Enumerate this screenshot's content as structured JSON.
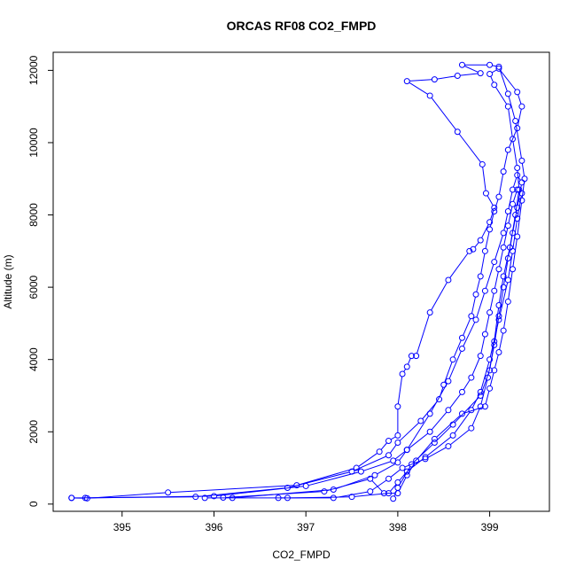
{
  "chart_data": {
    "type": "line",
    "title": "ORCAS RF08 CO2_FMPD",
    "xlabel": "CO2_FMPD",
    "ylabel": "Altitude (m)",
    "xlim": [
      394.25,
      399.65
    ],
    "ylim": [
      -200,
      12500
    ],
    "x_ticks": [
      395,
      396,
      397,
      398,
      399
    ],
    "y_ticks": [
      0,
      2000,
      4000,
      6000,
      8000,
      10000,
      12000
    ],
    "x_tick_labels": [
      "395",
      "396",
      "397",
      "398",
      "399"
    ],
    "y_tick_labels": [
      "0",
      "2000",
      "4000",
      "6000",
      "8000",
      "10000",
      "12000"
    ],
    "grid": false,
    "marker": "open-circle",
    "color": "#0000ff",
    "series": [
      {
        "points": [
          [
            394.45,
            170
          ],
          [
            394.62,
            160
          ],
          [
            395.5,
            320
          ],
          [
            396.9,
            520
          ],
          [
            397.55,
            1000
          ],
          [
            397.8,
            1450
          ],
          [
            397.9,
            1750
          ],
          [
            398.0,
            1900
          ],
          [
            398.0,
            2700
          ],
          [
            398.05,
            3600
          ],
          [
            398.1,
            3800
          ],
          [
            398.15,
            4100
          ],
          [
            398.2,
            4100
          ],
          [
            398.35,
            5300
          ],
          [
            398.55,
            6200
          ],
          [
            398.78,
            7000
          ],
          [
            398.82,
            7050
          ],
          [
            398.9,
            7300
          ],
          [
            399.0,
            7800
          ],
          [
            399.05,
            8200
          ],
          [
            398.96,
            8600
          ],
          [
            398.92,
            9400
          ],
          [
            398.65,
            10300
          ],
          [
            398.35,
            11300
          ],
          [
            398.1,
            11700
          ],
          [
            398.4,
            11750
          ],
          [
            398.65,
            11850
          ],
          [
            398.9,
            11920
          ],
          [
            398.7,
            12150
          ],
          [
            399.0,
            12150
          ],
          [
            399.1,
            12100
          ],
          [
            399.2,
            11350
          ],
          [
            399.28,
            10600
          ],
          [
            399.35,
            9500
          ],
          [
            399.38,
            9000
          ],
          [
            399.35,
            8400
          ],
          [
            399.3,
            7400
          ],
          [
            399.25,
            6500
          ],
          [
            399.2,
            5600
          ],
          [
            399.15,
            4800
          ],
          [
            399.1,
            4200
          ],
          [
            399.05,
            3700
          ],
          [
            399.0,
            3200
          ],
          [
            398.95,
            2700
          ],
          [
            398.7,
            2500
          ],
          [
            398.4,
            1800
          ],
          [
            398.2,
            1200
          ],
          [
            398.1,
            800
          ],
          [
            398.0,
            300
          ],
          [
            397.85,
            300
          ],
          [
            397.7,
            700
          ],
          [
            397.2,
            350
          ],
          [
            396.1,
            180
          ]
        ]
      },
      {
        "points": [
          [
            394.45,
            170
          ],
          [
            395.8,
            200
          ],
          [
            396.8,
            450
          ],
          [
            397.5,
            900
          ],
          [
            397.9,
            1350
          ],
          [
            398.0,
            1700
          ],
          [
            398.25,
            2300
          ],
          [
            398.45,
            2900
          ],
          [
            398.5,
            3300
          ],
          [
            398.6,
            4000
          ],
          [
            398.7,
            4600
          ],
          [
            398.8,
            5200
          ],
          [
            398.85,
            5800
          ],
          [
            398.9,
            6300
          ],
          [
            398.95,
            7000
          ],
          [
            399.0,
            7600
          ],
          [
            399.05,
            8100
          ],
          [
            399.1,
            8500
          ],
          [
            399.15,
            9200
          ],
          [
            399.2,
            9800
          ],
          [
            399.3,
            10400
          ],
          [
            399.35,
            11000
          ],
          [
            399.3,
            11400
          ],
          [
            399.1,
            12050
          ],
          [
            399.0,
            11900
          ],
          [
            399.05,
            11600
          ],
          [
            399.2,
            11000
          ],
          [
            399.25,
            10100
          ],
          [
            399.3,
            9300
          ],
          [
            399.32,
            8700
          ],
          [
            399.28,
            8000
          ],
          [
            399.22,
            7100
          ],
          [
            399.15,
            6300
          ],
          [
            399.1,
            5500
          ],
          [
            399.05,
            4500
          ],
          [
            399.0,
            3700
          ],
          [
            398.9,
            3000
          ],
          [
            398.6,
            2200
          ],
          [
            398.4,
            1700
          ],
          [
            398.15,
            1100
          ],
          [
            398.0,
            450
          ],
          [
            397.95,
            150
          ]
        ]
      },
      {
        "points": [
          [
            394.6,
            170
          ],
          [
            396.0,
            220
          ],
          [
            397.0,
            500
          ],
          [
            397.6,
            900
          ],
          [
            397.95,
            1200
          ],
          [
            398.1,
            1500
          ],
          [
            398.35,
            2000
          ],
          [
            398.55,
            2600
          ],
          [
            398.7,
            3100
          ],
          [
            398.8,
            3500
          ],
          [
            398.9,
            4100
          ],
          [
            398.95,
            4700
          ],
          [
            399.0,
            5300
          ],
          [
            399.05,
            5900
          ],
          [
            399.1,
            6500
          ],
          [
            399.15,
            7100
          ],
          [
            399.2,
            7700
          ],
          [
            399.25,
            8300
          ],
          [
            399.3,
            8700
          ],
          [
            399.35,
            8600
          ],
          [
            399.3,
            7900
          ],
          [
            399.25,
            7000
          ],
          [
            399.2,
            6200
          ],
          [
            399.1,
            5100
          ],
          [
            399.0,
            4000
          ],
          [
            398.9,
            3100
          ],
          [
            398.8,
            2600
          ],
          [
            398.6,
            1900
          ],
          [
            398.3,
            1300
          ],
          [
            398.1,
            900
          ],
          [
            398.0,
            600
          ],
          [
            397.9,
            300
          ],
          [
            397.5,
            200
          ],
          [
            396.8,
            170
          ],
          [
            395.9,
            170
          ]
        ]
      },
      {
        "points": [
          [
            396.2,
            170
          ],
          [
            397.3,
            400
          ],
          [
            397.75,
            800
          ],
          [
            398.0,
            1150
          ],
          [
            398.1,
            1500
          ],
          [
            398.35,
            2500
          ],
          [
            398.55,
            3400
          ],
          [
            398.7,
            4300
          ],
          [
            398.85,
            5100
          ],
          [
            398.95,
            5900
          ],
          [
            399.05,
            6700
          ],
          [
            399.15,
            7500
          ],
          [
            399.2,
            8100
          ],
          [
            399.25,
            8700
          ],
          [
            399.3,
            9100
          ],
          [
            399.35,
            8900
          ],
          [
            399.3,
            8200
          ],
          [
            399.25,
            7500
          ],
          [
            399.2,
            6800
          ],
          [
            399.15,
            6000
          ],
          [
            399.1,
            5200
          ],
          [
            399.05,
            4400
          ],
          [
            398.98,
            3500
          ],
          [
            398.9,
            2700
          ],
          [
            398.8,
            2100
          ],
          [
            398.55,
            1600
          ],
          [
            398.3,
            1250
          ],
          [
            398.05,
            1000
          ],
          [
            397.9,
            700
          ],
          [
            397.7,
            350
          ],
          [
            397.3,
            170
          ],
          [
            396.7,
            170
          ]
        ]
      }
    ]
  }
}
